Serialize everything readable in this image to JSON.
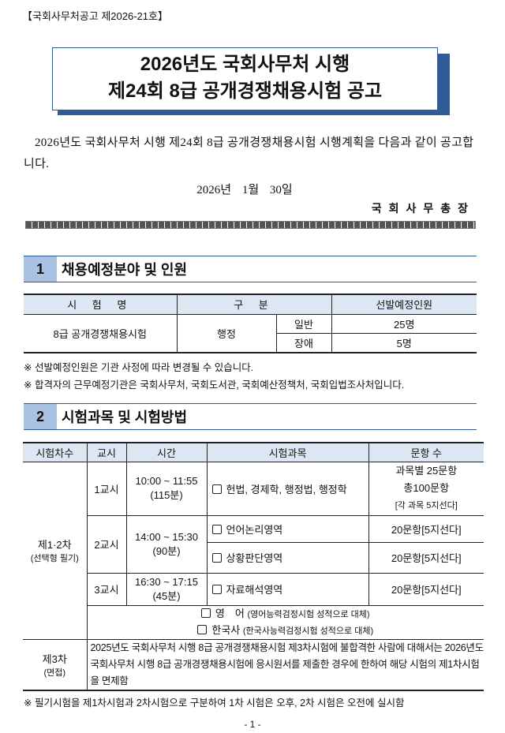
{
  "notice_number": "【국회사무처공고 제2026-21호】",
  "title": {
    "line1": "2026년도 국회사무처 시행",
    "line2": "제24회 8급 공개경쟁채용시험 공고"
  },
  "intro": "2026년도 국회사무처 시행 제24회 8급 공개경쟁채용시험 시행계획을 다음과 같이 공고합니다.",
  "date": "2026년 1월 30일",
  "signer": "국회사무총장",
  "section1": {
    "number": "1",
    "title": "채용예정분야 및 인원",
    "headers": [
      "시 험 명",
      "구 분",
      "선발예정인원"
    ],
    "exam_name": "8급 공개경쟁채용시험",
    "field": "행정",
    "rows": [
      {
        "type": "일반",
        "count": "25명"
      },
      {
        "type": "장애",
        "count": "5명"
      }
    ],
    "notes": [
      "※ 선발예정인원은 기관 사정에 따라 변경될 수 있습니다.",
      "※ 합격자의 근무예정기관은 국회사무처, 국회도서관, 국회예산정책처, 국회입법조사처입니다."
    ]
  },
  "section2": {
    "number": "2",
    "title": "시험과목 및 시험방법",
    "headers": [
      "시험차수",
      "교시",
      "시간",
      "시험과목",
      "문항 수"
    ],
    "stage12": {
      "label": "제1·2차",
      "sub": "(선택형 필기)"
    },
    "periods": [
      {
        "period": "1교시",
        "time": "10:00 ~ 11:55",
        "duration": "(115분)",
        "subjects": [
          "헌법, 경제학, 행정법, 행정학"
        ],
        "questions": [
          "과목별 25문항",
          "총100문항",
          "[각 과목 5지선다]"
        ]
      },
      {
        "period": "2교시",
        "time": "14:00 ~ 15:30",
        "duration": "(90분)",
        "subjects": [
          "언어논리영역",
          "상황판단영역"
        ],
        "questions": [
          "20문항[5지선다]",
          "20문항[5지선다]"
        ]
      },
      {
        "period": "3교시",
        "time": "16:30 ~ 17:15",
        "duration": "(45분)",
        "subjects": [
          "자료해석영역"
        ],
        "questions": [
          "20문항[5지선다]"
        ]
      }
    ],
    "substitutes": [
      {
        "subject": "영　어",
        "note": "(영어능력검정시험 성적으로 대체)"
      },
      {
        "subject": "한국사",
        "note": "(한국사능력검정시험 성적으로 대체)"
      }
    ],
    "stage3": {
      "label": "제3차",
      "sub": "(면접)",
      "text": "2025년도 국회사무처 시행 8급 공개경쟁채용시험 제3차시험에 불합격한 사람에 대해서는 2026년도 국회사무처 시행 8급 공개경쟁채용시험에 응시원서를 제출한 경우에 한하여 해당 시험의 제1차시험을 면제함"
    },
    "note": "※ 필기시험을 제1차시험과 2차시험으로 구분하여 1차 시험은 오후, 2차 시험은 오전에 실시함"
  },
  "page_number": "- 1 -"
}
